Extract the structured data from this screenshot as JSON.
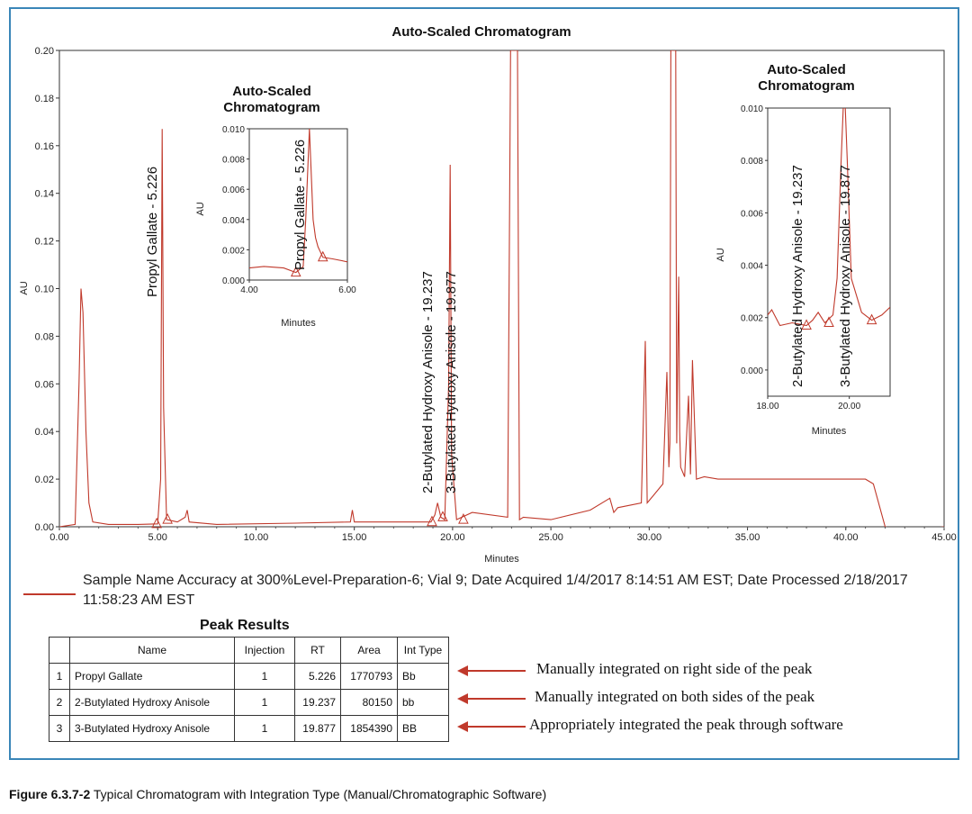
{
  "chart_data": [
    {
      "type": "line",
      "title": "Auto-Scaled Chromatogram",
      "xlabel": "Minutes",
      "ylabel": "AU",
      "xlim": [
        0,
        45
      ],
      "ylim": [
        0,
        0.2
      ],
      "x_ticks": [
        "0.00",
        "5.00",
        "10.00",
        "15.00",
        "20.00",
        "25.00",
        "30.00",
        "35.00",
        "40.00",
        "45.00"
      ],
      "y_ticks": [
        "0.00",
        "0.02",
        "0.04",
        "0.06",
        "0.08",
        "0.10",
        "0.12",
        "0.14",
        "0.16",
        "0.18",
        "0.20"
      ],
      "series": [
        {
          "x": [
            0,
            0.8,
            1.0,
            1.1,
            1.2,
            1.35,
            1.5,
            1.7,
            2.5,
            4.0,
            5.0,
            5.15,
            5.226,
            5.3,
            5.45,
            6.0,
            6.4,
            6.5,
            6.6,
            8.0,
            12.0,
            14.8,
            14.9,
            15.0,
            18.9,
            19.1,
            19.237,
            19.4,
            19.6,
            19.8,
            19.877,
            19.95,
            20.2,
            21.0,
            22.8,
            22.95,
            23.0,
            23.3,
            23.4,
            23.6,
            25.0,
            27.0,
            28.0,
            28.2,
            28.4,
            29.6,
            29.8,
            29.9,
            30.2,
            30.7,
            30.9,
            31.0,
            31.05,
            31.1,
            31.3,
            31.35,
            31.4,
            31.5,
            31.55,
            31.6,
            31.8,
            32.0,
            32.1,
            32.2,
            32.4,
            32.8,
            33.5,
            35.0,
            37.0,
            39.0,
            41.0,
            41.4,
            42.0,
            43.0,
            45.0
          ],
          "y": [
            0,
            0.001,
            0.06,
            0.1,
            0.09,
            0.04,
            0.01,
            0.002,
            0.001,
            0.001,
            0.0012,
            0.02,
            0.167,
            0.05,
            0.003,
            0.002,
            0.004,
            0.007,
            0.002,
            0.001,
            0.0015,
            0.002,
            0.007,
            0.002,
            0.002,
            0.005,
            0.01,
            0.004,
            0.003,
            0.06,
            0.152,
            0.03,
            0.003,
            0.006,
            0.004,
            0.2,
            0.2,
            0.2,
            0.003,
            0.004,
            0.003,
            0.007,
            0.012,
            0.006,
            0.008,
            0.01,
            0.078,
            0.01,
            0.013,
            0.018,
            0.065,
            0.025,
            0.035,
            0.2,
            0.2,
            0.2,
            0.035,
            0.105,
            0.04,
            0.025,
            0.021,
            0.055,
            0.022,
            0.07,
            0.02,
            0.021,
            0.02,
            0.02,
            0.02,
            0.02,
            0.02,
            0.018,
            0.0,
            -0.002,
            0.0
          ]
        }
      ],
      "peak_labels": [
        {
          "x": 5.226,
          "text": "Propyl Gallate - 5.226"
        },
        {
          "x": 19.237,
          "text": "2-Butylated Hydroxy Anisole - 19.237"
        },
        {
          "x": 19.877,
          "text": "3-Butylated Hydroxy Anisole - 19.877"
        }
      ],
      "integration_markers": [
        4.95,
        5.5,
        18.95,
        19.5,
        20.55
      ]
    },
    {
      "type": "line",
      "title": "Auto-Scaled Chromatogram",
      "xlabel": "Minutes",
      "ylabel": "AU",
      "xlim": [
        4,
        6
      ],
      "ylim": [
        0,
        0.01
      ],
      "x_ticks": [
        "4.00",
        "6.00"
      ],
      "y_ticks": [
        "0.000",
        "0.002",
        "0.004",
        "0.006",
        "0.008",
        "0.010"
      ],
      "series": [
        {
          "x": [
            4.0,
            4.3,
            4.7,
            4.95,
            5.1,
            5.15,
            5.226,
            5.3,
            5.35,
            5.4,
            5.5,
            5.7,
            6.0
          ],
          "y": [
            0.0008,
            0.0009,
            0.0008,
            0.0005,
            0.0009,
            0.004,
            0.01,
            0.004,
            0.0028,
            0.0022,
            0.0015,
            0.0014,
            0.0012
          ]
        }
      ],
      "peak_labels": [
        {
          "x": 5.226,
          "text": "Propyl Gallate - 5.226"
        }
      ],
      "integration_markers": [
        4.95,
        5.5
      ]
    },
    {
      "type": "line",
      "title": "Auto-Scaled Chromatogram",
      "xlabel": "Minutes",
      "ylabel": "AU",
      "xlim": [
        18,
        21
      ],
      "ylim": [
        -0.001,
        0.01
      ],
      "x_ticks": [
        "18.00",
        "20.00"
      ],
      "y_ticks": [
        "0.000",
        "0.002",
        "0.004",
        "0.006",
        "0.008",
        "0.010"
      ],
      "series": [
        {
          "x": [
            18.0,
            18.1,
            18.3,
            18.6,
            18.95,
            19.1,
            19.237,
            19.4,
            19.6,
            19.7,
            19.8,
            19.877,
            19.95,
            20.05,
            20.3,
            20.55,
            20.8,
            21.0
          ],
          "y": [
            0.0021,
            0.0023,
            0.0017,
            0.0018,
            0.0017,
            0.0019,
            0.0022,
            0.0018,
            0.0021,
            0.0035,
            0.008,
            0.011,
            0.008,
            0.0035,
            0.0022,
            0.0019,
            0.0021,
            0.0024
          ]
        }
      ],
      "peak_labels": [
        {
          "x": 19.237,
          "text": "2-Butylated Hydroxy Anisole - 19.237"
        },
        {
          "x": 19.877,
          "text": "3-Butylated Hydroxy Anisole - 19.877"
        }
      ],
      "integration_markers": [
        18.95,
        19.5,
        20.55
      ]
    }
  ],
  "legend": {
    "color": "#c0392b",
    "text": "Sample Name Accuracy at 300%Level-Preparation-6; Vial 9; Date Acquired 1/4/2017 8:14:51 AM EST; Date Processed 2/18/2017 11:58:23 AM EST"
  },
  "peak_results": {
    "title": "Peak Results",
    "columns": [
      "",
      "Name",
      "Injection",
      "RT",
      "Area",
      "Int Type"
    ],
    "rows": [
      {
        "idx": "1",
        "name": "Propyl Gallate",
        "injection": "1",
        "rt": "5.226",
        "area": "1770793",
        "int_type": "Bb"
      },
      {
        "idx": "2",
        "name": "2-Butylated Hydroxy Anisole",
        "injection": "1",
        "rt": "19.237",
        "area": "80150",
        "int_type": "bb"
      },
      {
        "idx": "3",
        "name": "3-Butylated Hydroxy Anisole",
        "injection": "1",
        "rt": "19.877",
        "area": "1854390",
        "int_type": "BB"
      }
    ]
  },
  "notes": [
    "Manually integrated on right side of the peak",
    "Manually integrated on both sides of the peak",
    "Appropriately integrated the peak through software"
  ],
  "caption": {
    "label": "Figure 6.3.7-2",
    "text": "Typical Chromatogram with Integration Type (Manual/Chromatographic Software)"
  },
  "colors": {
    "trace": "#c0392b",
    "frame": "#3a86b8",
    "arrow": "#c0392b"
  }
}
